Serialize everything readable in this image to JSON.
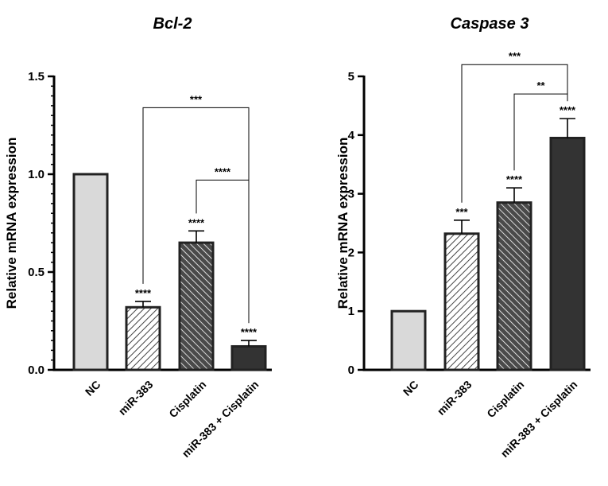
{
  "chart_data": [
    {
      "type": "bar",
      "title": "Bcl-2",
      "ylabel": "Relative mRNA expression",
      "ylim": [
        0,
        1.5
      ],
      "yticks": [
        "0.0",
        "0.5",
        "1.0",
        "1.5"
      ],
      "categories": [
        "NC",
        "miR-383",
        "Cisplatin",
        "miR-383 + Cisplatin"
      ],
      "values": [
        1.0,
        0.32,
        0.65,
        0.12
      ],
      "errors": [
        0,
        0.03,
        0.06,
        0.03
      ],
      "bar_stars": [
        "",
        "****",
        "****",
        "****"
      ],
      "brackets": [
        {
          "from": 1,
          "to": 3,
          "y": 1.34,
          "label": "***"
        },
        {
          "from": 2,
          "to": 3,
          "y": 0.97,
          "label": "****"
        }
      ],
      "fills": [
        "light-gray",
        "light-hatch",
        "dark-hatch",
        "dark"
      ]
    },
    {
      "type": "bar",
      "title": "Caspase 3",
      "ylabel": "Relative mRNA expression",
      "ylim": [
        0,
        5
      ],
      "yticks": [
        "0",
        "1",
        "2",
        "3",
        "4",
        "5"
      ],
      "categories": [
        "NC",
        "miR-383",
        "Cisplatin",
        "miR-383 + Cisplatin"
      ],
      "values": [
        1.0,
        2.32,
        2.85,
        3.95
      ],
      "errors": [
        0,
        0.23,
        0.25,
        0.33
      ],
      "bar_stars": [
        "",
        "***",
        "****",
        "****"
      ],
      "brackets": [
        {
          "from": 1,
          "to": 3,
          "y": 5.2,
          "label": "***"
        },
        {
          "from": 2,
          "to": 3,
          "y": 4.7,
          "label": "**"
        }
      ],
      "fills": [
        "light-gray",
        "light-hatch",
        "dark-hatch",
        "dark"
      ]
    }
  ],
  "colors": {
    "light_gray": "#d9d9d9",
    "dark": "#333333",
    "hatch_bg": "#ffffff",
    "hatch_light_line": "#555555",
    "hatch_dark_bg": "#555555",
    "hatch_dark_line": "#ffffff",
    "outline": "#222222"
  }
}
